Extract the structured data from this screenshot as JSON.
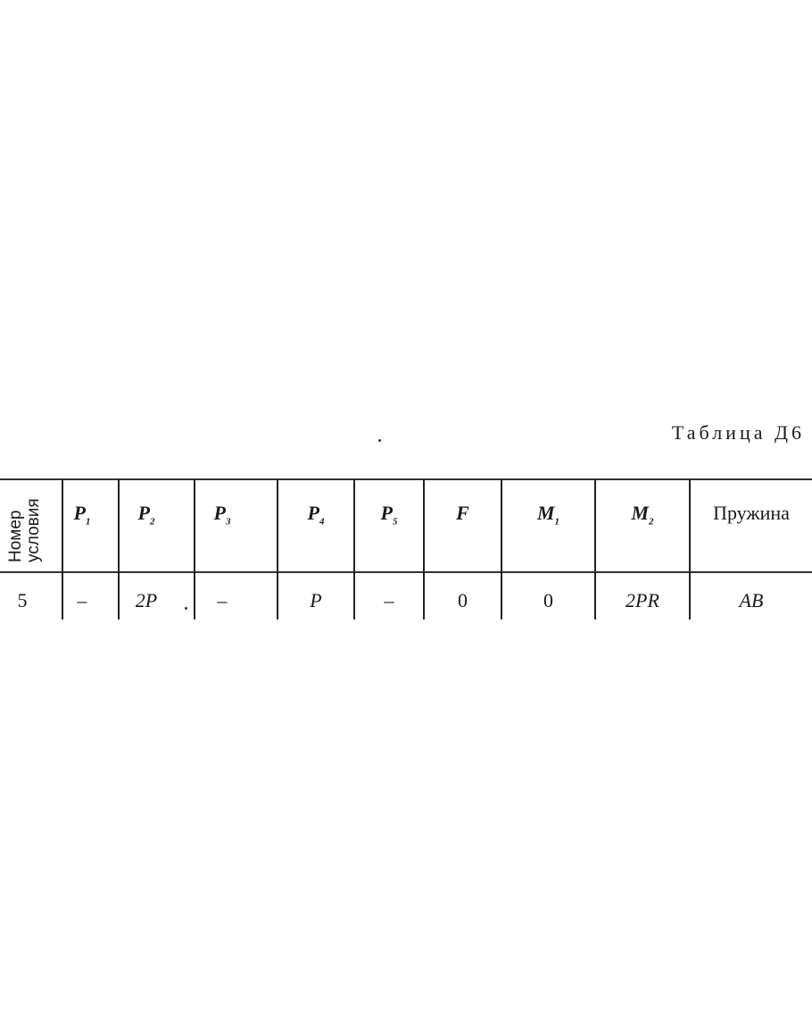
{
  "title": "Таблица Д6",
  "header": {
    "first_col": [
      "Номер",
      "условия"
    ],
    "columns": [
      {
        "base": "P",
        "sub": "1"
      },
      {
        "base": "P",
        "sub": "2"
      },
      {
        "base": "P",
        "sub": "3"
      },
      {
        "base": "P",
        "sub": "4"
      },
      {
        "base": "P",
        "sub": "5"
      },
      {
        "base": "F",
        "sub": ""
      },
      {
        "base": "M",
        "sub": "1"
      },
      {
        "base": "M",
        "sub": "2"
      },
      {
        "base": "Пружина",
        "sub": ""
      }
    ]
  },
  "rows": [
    {
      "number": "5",
      "values": [
        "–",
        "2P",
        "–",
        "P",
        "–",
        "0",
        "0",
        "2PR",
        "AB"
      ]
    }
  ]
}
